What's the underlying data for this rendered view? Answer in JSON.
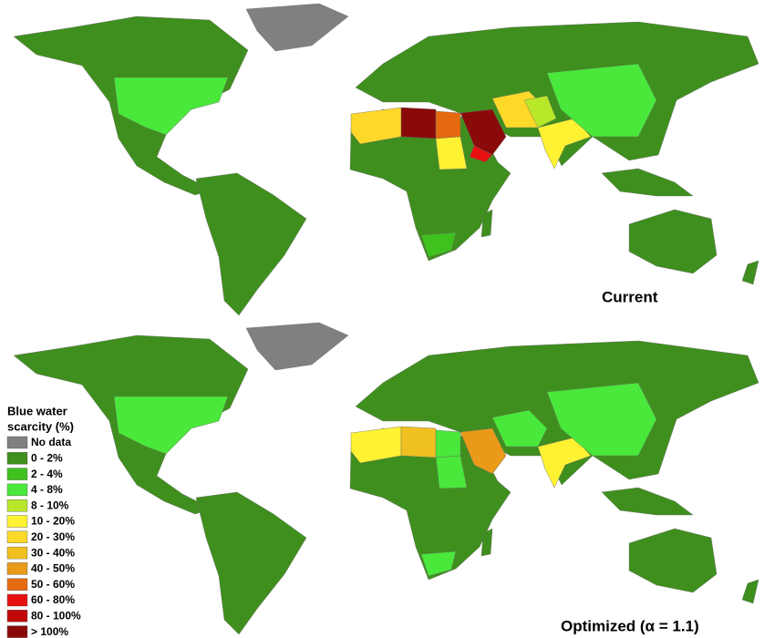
{
  "maps": [
    {
      "label": "Current"
    },
    {
      "label": "Optimized (α = 1.1)"
    }
  ],
  "legend": {
    "title_lines": [
      "Blue water",
      "scarcity (%)"
    ],
    "items": [
      {
        "label": "No data",
        "color": "#808080"
      },
      {
        "label": "0 - 2%",
        "color": "#3f8f1e"
      },
      {
        "label": "2 - 4%",
        "color": "#3fc21e"
      },
      {
        "label": "4 - 8%",
        "color": "#49e83a"
      },
      {
        "label": "8 - 10%",
        "color": "#b9e82a"
      },
      {
        "label": "10 - 20%",
        "color": "#fff233"
      },
      {
        "label": "20 - 30%",
        "color": "#ffd92a"
      },
      {
        "label": "30 - 40%",
        "color": "#f0c020"
      },
      {
        "label": "40 - 50%",
        "color": "#e89a18"
      },
      {
        "label": "50 - 60%",
        "color": "#e66a10"
      },
      {
        "label": "60 - 80%",
        "color": "#e81010"
      },
      {
        "label": "80 - 100%",
        "color": "#c00808"
      },
      {
        "label": "> 100%",
        "color": "#8a0a0a"
      }
    ]
  }
}
